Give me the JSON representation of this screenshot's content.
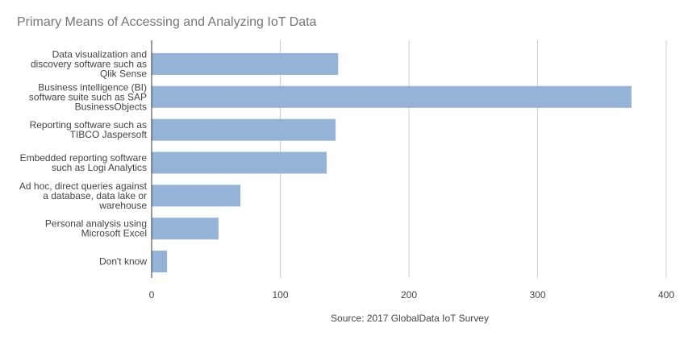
{
  "chart_data": {
    "type": "bar",
    "orientation": "horizontal",
    "title": "Primary Means of Accessing and Analyzing IoT Data",
    "xlabel": "Source: 2017 GlobalData IoT Survey",
    "ylabel": "",
    "categories": [
      [
        "Data visualization and",
        "discovery software such as",
        "Qlik Sense"
      ],
      [
        "Business intelligence (BI)",
        "software suite such as SAP",
        "BusinessObjects"
      ],
      [
        "Reporting software such as",
        "TIBCO Jaspersoft"
      ],
      [
        "Embedded reporting software",
        "such as Logi Analytics"
      ],
      [
        "Ad hoc, direct queries against",
        "a database, data lake or",
        "warehouse"
      ],
      [
        "Personal analysis using",
        "Microsoft Excel"
      ],
      [
        "Don't know"
      ]
    ],
    "values": [
      145,
      373,
      143,
      136,
      69,
      52,
      12
    ],
    "xlim": [
      0,
      400
    ],
    "xticks": [
      "0",
      "100",
      "200",
      "300",
      "400"
    ],
    "grid": true,
    "legend": "none",
    "bar_color": "#95b3d7",
    "grid_color": "#cccccc",
    "text_color": "#757575",
    "axis_text_color": "#444444"
  }
}
